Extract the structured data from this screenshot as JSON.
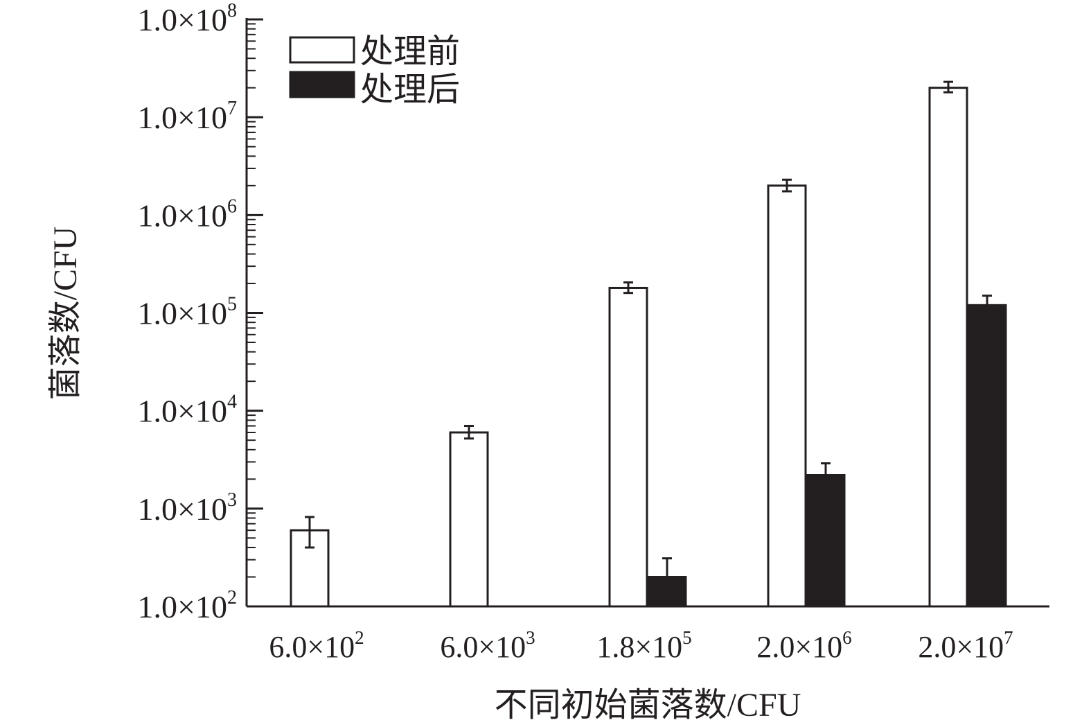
{
  "chart_data": {
    "type": "bar",
    "xlabel": "不同初始菌落数/CFU",
    "ylabel": "菌落数/CFU",
    "yscale": "log",
    "ylim": [
      100,
      100000000
    ],
    "yticks": [
      {
        "mantissa": "1.0",
        "exp": "2"
      },
      {
        "mantissa": "1.0",
        "exp": "3"
      },
      {
        "mantissa": "1.0",
        "exp": "4"
      },
      {
        "mantissa": "1.0",
        "exp": "5"
      },
      {
        "mantissa": "1.0",
        "exp": "6"
      },
      {
        "mantissa": "1.0",
        "exp": "7"
      },
      {
        "mantissa": "1.0",
        "exp": "8"
      }
    ],
    "categories": [
      {
        "mantissa": "6.0",
        "exp": "2"
      },
      {
        "mantissa": "6.0",
        "exp": "3"
      },
      {
        "mantissa": "1.8",
        "exp": "5"
      },
      {
        "mantissa": "2.0",
        "exp": "6"
      },
      {
        "mantissa": "2.0",
        "exp": "7"
      }
    ],
    "series": [
      {
        "name": "处理前",
        "fill": "#ffffff",
        "values": [
          600,
          6000,
          180000,
          2000000,
          20000000
        ],
        "err_low": [
          400,
          5200,
          160000,
          1750000,
          18000000
        ],
        "err_high": [
          820,
          7000,
          205000,
          2300000,
          23000000
        ]
      },
      {
        "name": "处理后",
        "fill": "#231f20",
        "values": [
          null,
          null,
          200,
          2200,
          120000
        ],
        "err_low": [
          null,
          null,
          200,
          2200,
          120000
        ],
        "err_high": [
          null,
          null,
          310,
          2900,
          150000
        ]
      }
    ],
    "legend_position": "top-left",
    "grid": false
  }
}
